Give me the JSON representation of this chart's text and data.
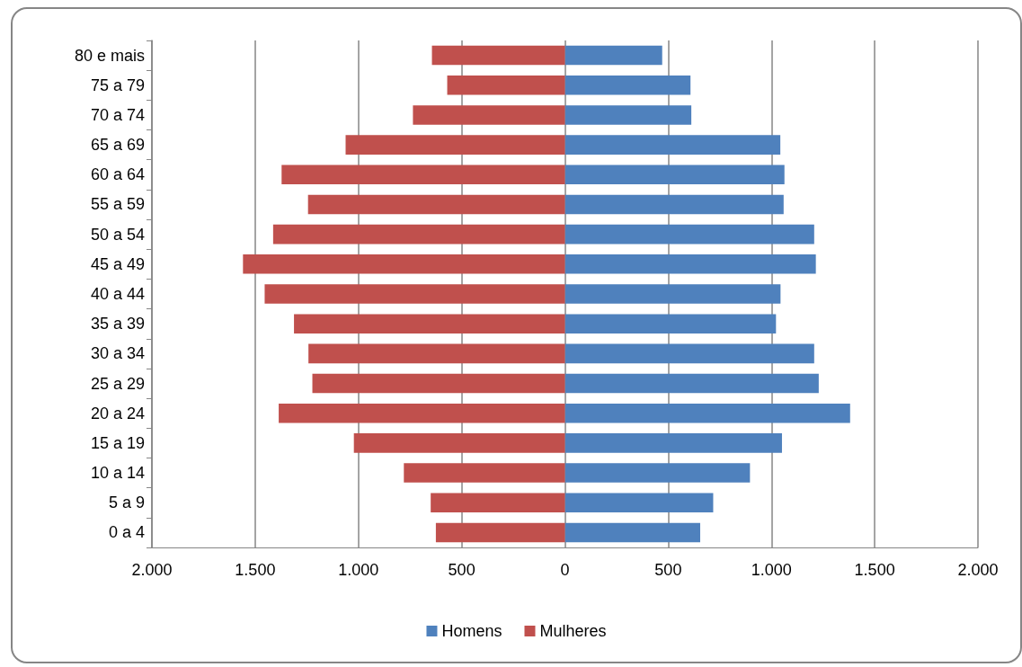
{
  "chart_data": {
    "type": "bar",
    "orientation": "horizontal",
    "stacked": true,
    "categories": [
      "80 e mais",
      "75 a 79",
      "70 a 74",
      "65 a 69",
      "60 a 64",
      "55 a 59",
      "50 a 54",
      "45 a 49",
      "40 a 44",
      "35 a 39",
      "30 a 34",
      "25 a 29",
      "20 a 24",
      "15 a 19",
      "10 a 14",
      "5 a 9",
      "0 a 4"
    ],
    "series": [
      {
        "name": "Homens",
        "color": "#4f81bd",
        "values": [
          471,
          608,
          612,
          1043,
          1063,
          1059,
          1207,
          1215,
          1044,
          1022,
          1207,
          1229,
          1381,
          1051,
          896,
          718,
          655
        ]
      },
      {
        "name": "Mulheres",
        "color": "#c0504d",
        "values": [
          -644,
          -570,
          -736,
          -1062,
          -1372,
          -1244,
          -1413,
          -1559,
          -1454,
          -1312,
          -1242,
          -1223,
          -1386,
          -1022,
          -780,
          -650,
          -625
        ]
      }
    ],
    "xlim": [
      -2000,
      2000
    ],
    "xticks": [
      {
        "value": -2000,
        "label": "2.000"
      },
      {
        "value": -1500,
        "label": "1.500"
      },
      {
        "value": -1000,
        "label": "1.000"
      },
      {
        "value": -500,
        "label": "500"
      },
      0,
      500,
      {
        "value": 1000,
        "label": "1.000"
      },
      {
        "value": 1500,
        "label": "1.500"
      },
      {
        "value": 2000,
        "label": "2.000"
      }
    ],
    "grid": "x",
    "legend": "bottom"
  }
}
